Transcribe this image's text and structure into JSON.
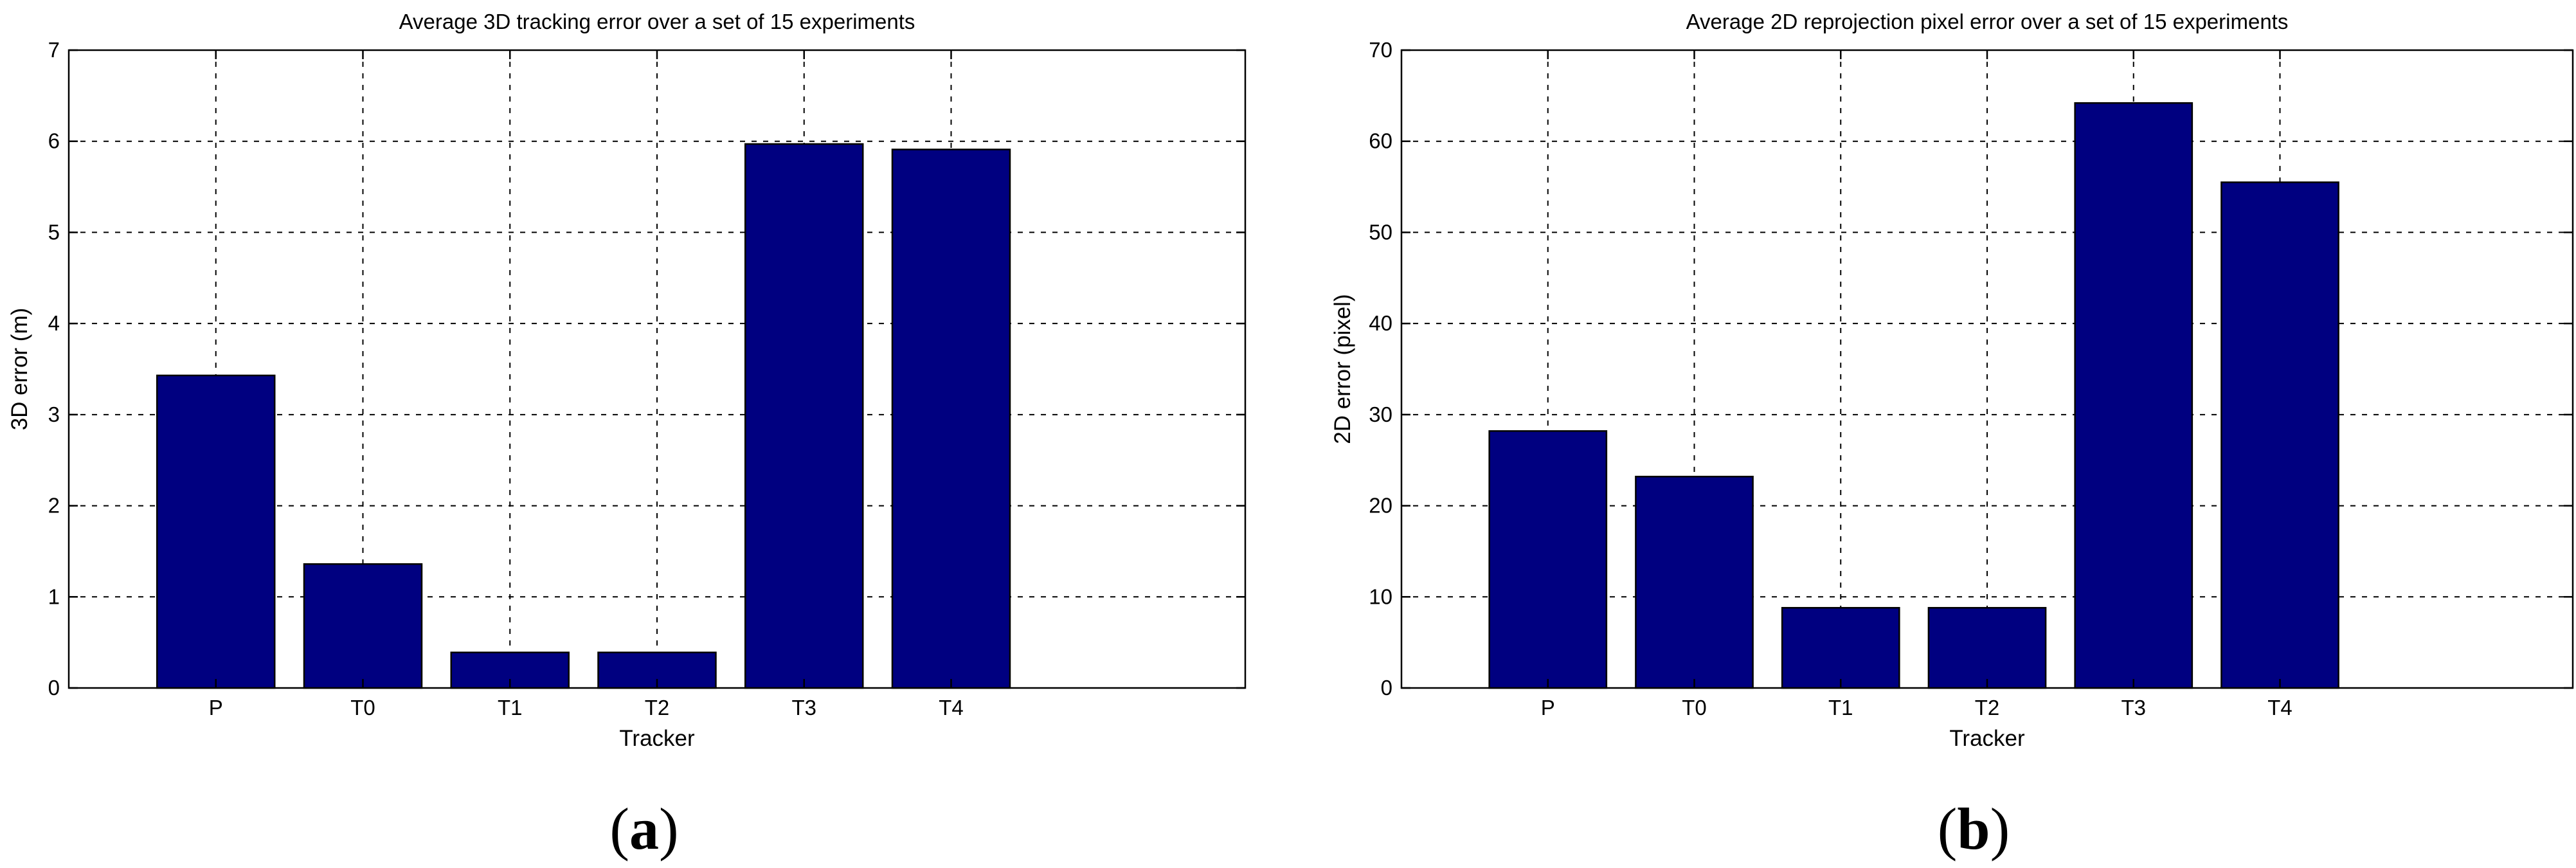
{
  "colors": {
    "bar_fill": "#000080"
  },
  "panel_labels": [
    {
      "open": "(",
      "letter": "a",
      "close": ")"
    },
    {
      "open": "(",
      "letter": "b",
      "close": ")"
    }
  ],
  "chart_data": [
    {
      "type": "bar",
      "title": "Average 3D tracking error over a set of 15 experiments",
      "xlabel": "Tracker",
      "ylabel": "3D error (m)",
      "categories": [
        "P",
        "T0",
        "T1",
        "T2",
        "T3",
        "T4"
      ],
      "values": [
        3.43,
        1.36,
        0.39,
        0.39,
        5.97,
        5.91
      ],
      "ylim": [
        0,
        7
      ],
      "yticks": [
        "0",
        "1",
        "2",
        "3",
        "4",
        "5",
        "6",
        "7"
      ],
      "grid": true,
      "legend": "none"
    },
    {
      "type": "bar",
      "title": "Average 2D reprojection pixel error over a set of 15 experiments",
      "xlabel": "Tracker",
      "ylabel": "2D error (pixel)",
      "categories": [
        "P",
        "T0",
        "T1",
        "T2",
        "T3",
        "T4"
      ],
      "values": [
        28.2,
        23.2,
        8.8,
        8.8,
        64.2,
        55.5
      ],
      "ylim": [
        0,
        70
      ],
      "yticks": [
        "0",
        "10",
        "20",
        "30",
        "40",
        "50",
        "60",
        "70"
      ],
      "grid": true,
      "legend": "none"
    }
  ]
}
